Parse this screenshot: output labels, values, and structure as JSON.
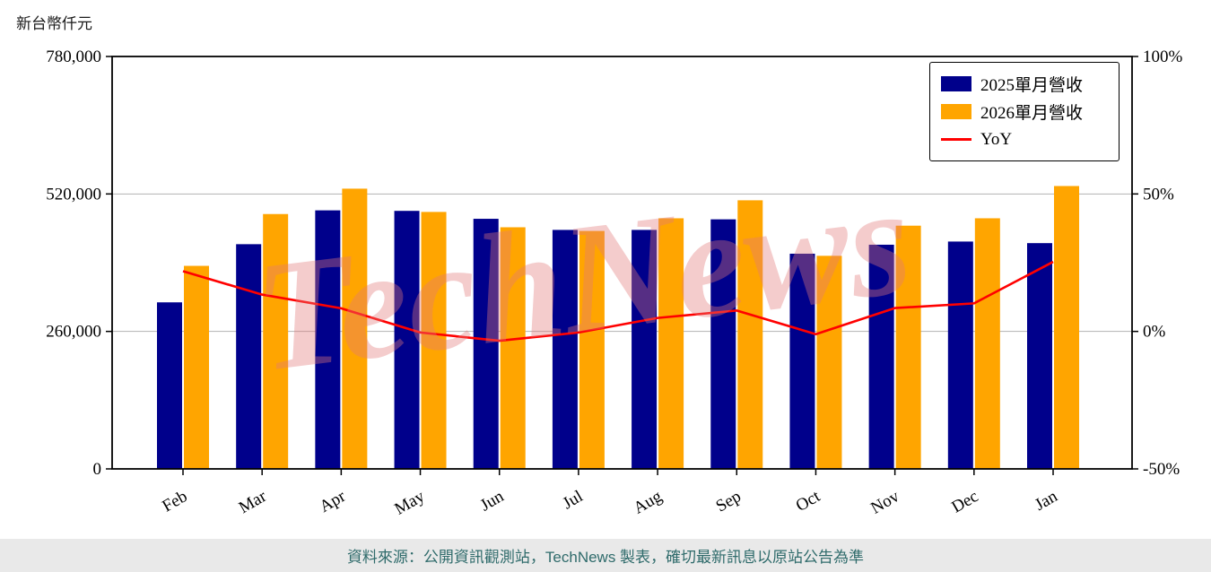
{
  "page": {
    "y_axis_title": "新台幣仟元",
    "watermark": "TechNews",
    "footer": "資料來源：公開資訊觀測站，TechNews 製表，確切最新訊息以原站公告為準"
  },
  "chart_data": {
    "type": "bar",
    "title": "",
    "categories": [
      "Feb",
      "Mar",
      "Apr",
      "May",
      "Jun",
      "Jul",
      "Aug",
      "Sep",
      "Oct",
      "Nov",
      "Dec",
      "Jan"
    ],
    "series": [
      {
        "name": "2025單月營收",
        "type": "bar",
        "axis": "left",
        "color": "#00008b",
        "values": [
          315000,
          425000,
          489000,
          488000,
          473000,
          452000,
          452000,
          472000,
          407000,
          424000,
          430000,
          427000
        ]
      },
      {
        "name": "2026單月營收",
        "type": "bar",
        "axis": "left",
        "color": "#ffa500",
        "values": [
          384000,
          482000,
          530000,
          486000,
          457000,
          450000,
          474000,
          508000,
          403000,
          460000,
          474000,
          535000
        ]
      },
      {
        "name": "YoY",
        "type": "line",
        "axis": "right",
        "color": "#ff0000",
        "values": [
          21.9,
          13.4,
          8.4,
          -0.4,
          -3.4,
          -0.4,
          4.9,
          7.6,
          -1.0,
          8.5,
          10.2,
          25.3
        ]
      }
    ],
    "left_axis": {
      "label": "新台幣仟元",
      "range": [
        0,
        780000
      ],
      "ticks": [
        0,
        260000,
        520000,
        780000
      ]
    },
    "right_axis": {
      "unit": "%",
      "range": [
        -50,
        100
      ],
      "ticks": [
        -50,
        0,
        50,
        100
      ]
    },
    "grid": "horizontal",
    "legend_position": "upper right",
    "colors": {
      "grid": "#b3b3b3",
      "frame": "#000000",
      "footer_bg": "#e9e9e9",
      "footer_text": "#2f6b6b",
      "watermark": "rgba(225,120,120,0.38)"
    }
  }
}
